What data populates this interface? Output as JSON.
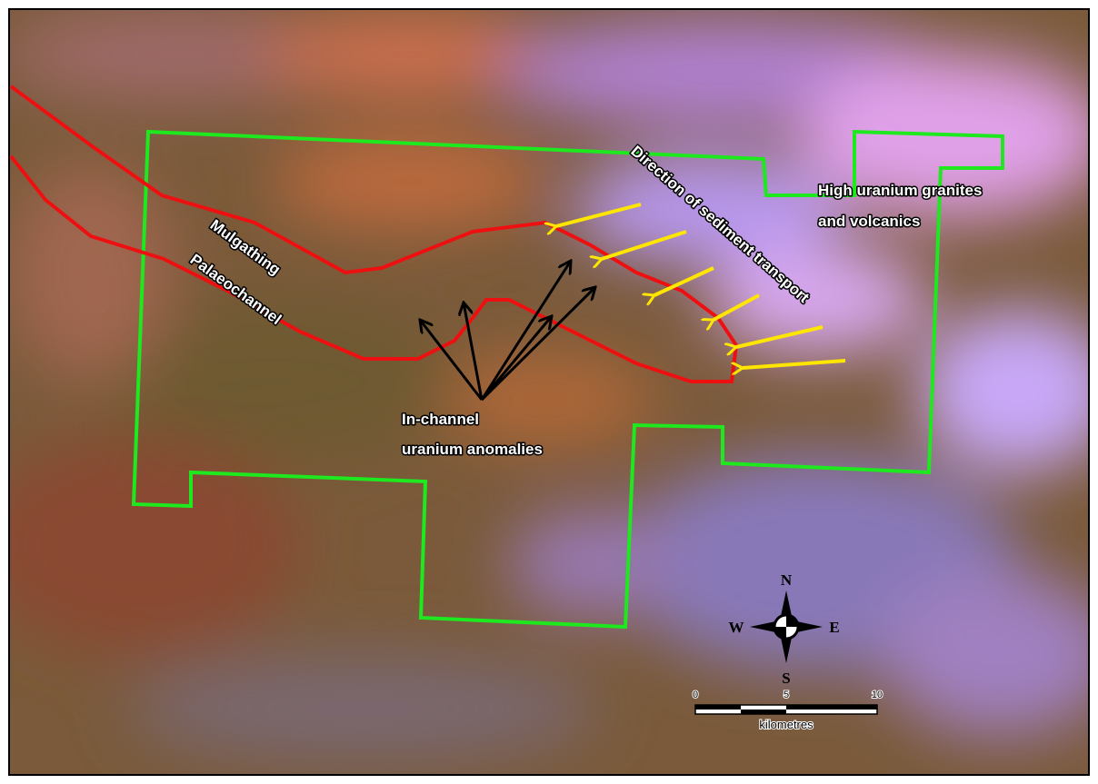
{
  "labels": {
    "palaeochannel": [
      "Mulgathing",
      "Palaeochannel"
    ],
    "sediment_direction": "Direction of sediment transport",
    "granites": [
      "High uranium granites",
      "and volcanics"
    ],
    "anomalies": [
      "In-channel",
      "uranium anomalies"
    ]
  },
  "compass": {
    "north": "N",
    "east": "E",
    "south": "S",
    "west": "W"
  },
  "scale_bar": {
    "ticks": [
      0,
      5,
      10
    ],
    "unit": "kilometres"
  }
}
